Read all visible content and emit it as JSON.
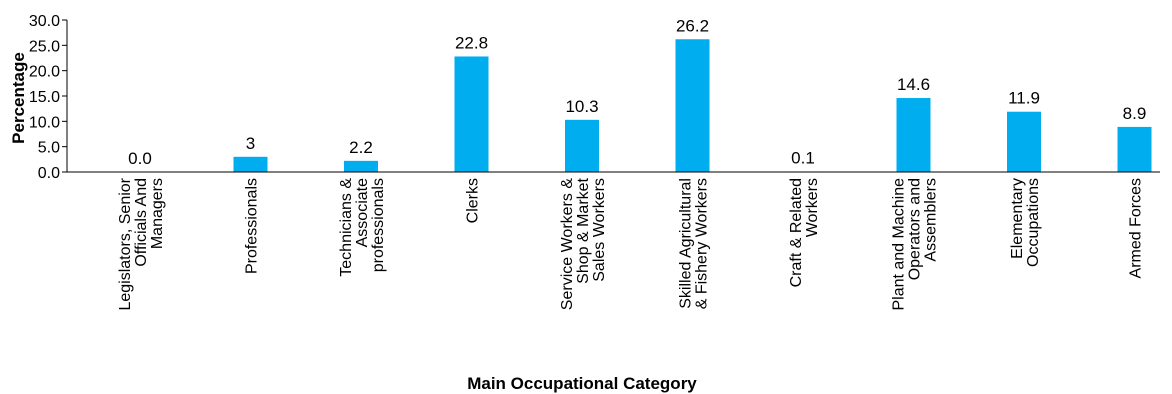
{
  "chart_data": {
    "type": "bar",
    "title": "",
    "xlabel": "Main Occupational Category",
    "ylabel": "Percentage",
    "ylim": [
      0,
      30
    ],
    "yticks": [
      "0.0",
      "5.0",
      "10.0",
      "15.0",
      "20.0",
      "25.0",
      "30.0"
    ],
    "grid": false,
    "bar_color": "#00ADEF",
    "categories": [
      [
        "Legislators, Senior",
        "Officials And",
        "Managers"
      ],
      [
        "Professionals"
      ],
      [
        "Technicians &",
        "Associate",
        "professionals"
      ],
      [
        "Clerks"
      ],
      [
        "Service Workers &",
        "Shop & Market",
        "Sales Workers"
      ],
      [
        "Skilled Agricultural",
        "& Fishery Workers"
      ],
      [
        "Craft & Related",
        "Workers"
      ],
      [
        "Plant and Machine",
        "Operators and",
        "Assemblers"
      ],
      [
        "Elementary",
        "Occupations"
      ],
      [
        "Armed Forces"
      ]
    ],
    "values": [
      0.0,
      3,
      2.2,
      22.8,
      10.3,
      26.2,
      0.1,
      14.6,
      11.9,
      8.9
    ],
    "data_labels": [
      "0.0",
      "3",
      "2.2",
      "22.8",
      "10.3",
      "26.2",
      "0.1",
      "14.6",
      "11.9",
      "8.9"
    ]
  }
}
